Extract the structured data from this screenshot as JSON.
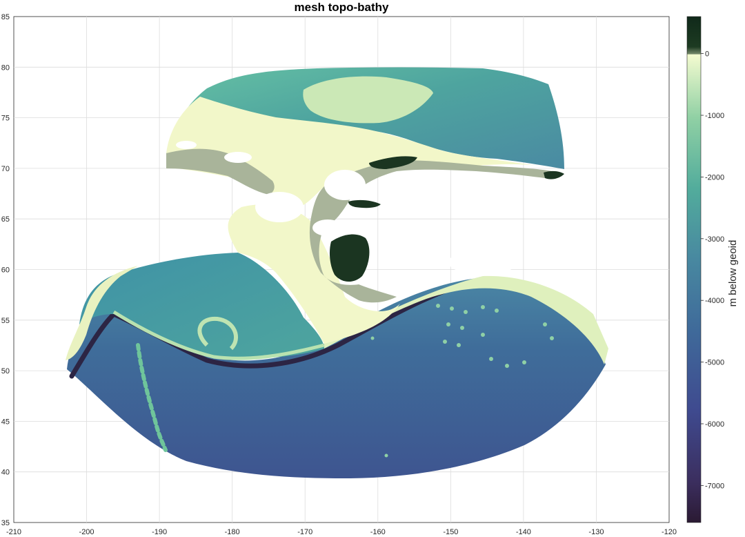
{
  "map": {
    "title": "mesh topo-bathy",
    "x_ticks": [
      "-210",
      "-200",
      "-190",
      "-180",
      "-170",
      "-160",
      "-150",
      "-140",
      "-130",
      "-120"
    ],
    "y_ticks": [
      "35",
      "40",
      "45",
      "50",
      "55",
      "60",
      "65",
      "70",
      "75",
      "80",
      "85"
    ],
    "xlim": [
      -210,
      -120
    ],
    "ylim": [
      35,
      85
    ],
    "grid": true
  },
  "colorbar": {
    "label": "m below geoid",
    "ticks": [
      "0",
      "-1000",
      "-2000",
      "-3000",
      "-4000",
      "-5000",
      "-6000",
      "-7000"
    ],
    "range": [
      -7600,
      600
    ],
    "colors": {
      "land": "#1b3521",
      "shelf": "#f2f7c9",
      "mid": "#4fa89b",
      "deep": "#46809c",
      "abyss": "#3e5a8e",
      "trench": "#2b1f38"
    }
  }
}
